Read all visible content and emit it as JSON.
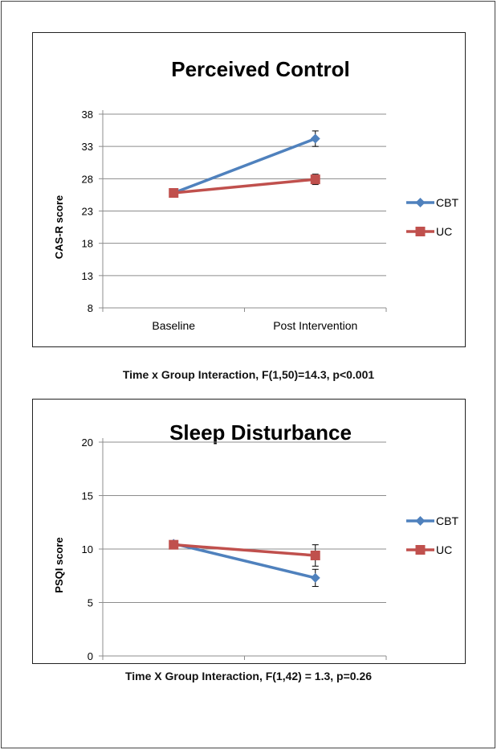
{
  "chart_data": [
    {
      "type": "line",
      "title": "Perceived Control",
      "ylabel": "CAS-R score",
      "xlabel": "",
      "categories": [
        "Baseline",
        "Post Intervention"
      ],
      "yticks": [
        8,
        13,
        18,
        23,
        28,
        33,
        38
      ],
      "ylim": [
        8,
        38
      ],
      "grid": true,
      "legend_position": "right",
      "series": [
        {
          "name": "CBT",
          "values": [
            25.8,
            34.2
          ],
          "error": [
            0,
            1.2
          ],
          "color": "#4f81bd",
          "marker": "diamond"
        },
        {
          "name": "UC",
          "values": [
            25.8,
            27.9
          ],
          "error": [
            0,
            0.8
          ],
          "color": "#c0504d",
          "marker": "square"
        }
      ],
      "caption": "Time x Group Interaction, F(1,50)=14.3, p<0.001"
    },
    {
      "type": "line",
      "title": "Sleep Disturbance",
      "ylabel": "PSQI score",
      "xlabel": "",
      "categories": [
        "Baseline",
        "Post Intervention"
      ],
      "yticks": [
        0,
        5,
        10,
        15,
        20
      ],
      "ylim": [
        0,
        20
      ],
      "grid": true,
      "legend_position": "right",
      "series": [
        {
          "name": "CBT",
          "values": [
            10.5,
            7.3
          ],
          "error": [
            0,
            0.8
          ],
          "color": "#4f81bd",
          "marker": "diamond"
        },
        {
          "name": "UC",
          "values": [
            10.4,
            9.4
          ],
          "error": [
            0,
            1.0
          ],
          "color": "#c0504d",
          "marker": "square"
        }
      ],
      "caption": "Time X Group Interaction, F(1,42) = 1.3, p=0.26"
    }
  ]
}
